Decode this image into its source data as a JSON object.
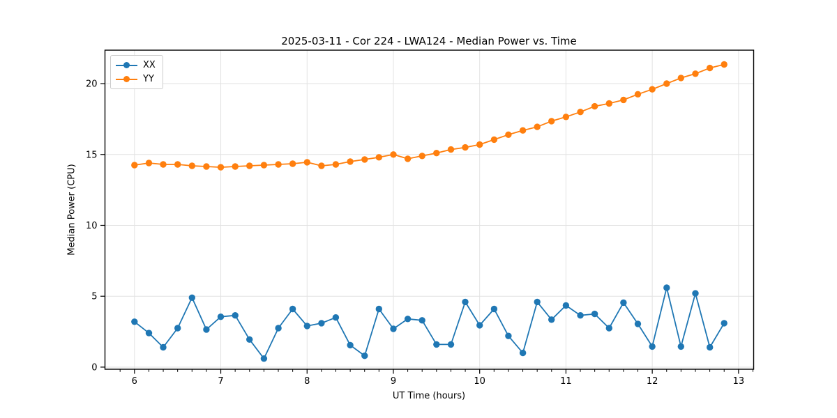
{
  "title": "2025-03-11 - Cor 224 - LWA124 - Median Power vs. Time",
  "axes": {
    "xlabel": "UT Time (hours)",
    "ylabel": "Median Power (CPU)"
  },
  "legend": {
    "entries": [
      "XX",
      "YY"
    ],
    "position": "upper left"
  },
  "chart_data": {
    "type": "line",
    "title": "2025-03-11 - Cor 224 - LWA124 - Median Power vs. Time",
    "xlabel": "UT Time (hours)",
    "ylabel": "Median Power (CPU)",
    "x": [
      6.0,
      6.167,
      6.333,
      6.5,
      6.667,
      6.833,
      7.0,
      7.167,
      7.333,
      7.5,
      7.667,
      7.833,
      8.0,
      8.167,
      8.333,
      8.5,
      8.667,
      8.833,
      9.0,
      9.167,
      9.333,
      9.5,
      9.667,
      9.833,
      10.0,
      10.167,
      10.333,
      10.5,
      10.667,
      10.833,
      11.0,
      11.167,
      11.333,
      11.5,
      11.667,
      11.833,
      12.0,
      12.167,
      12.333,
      12.5,
      12.667,
      12.833
    ],
    "series": [
      {
        "name": "XX",
        "color": "#1f77b4",
        "values": [
          3.2,
          2.4,
          1.4,
          2.75,
          4.9,
          2.65,
          3.55,
          3.65,
          1.95,
          0.6,
          2.75,
          4.1,
          2.9,
          3.1,
          3.5,
          1.55,
          0.8,
          4.1,
          2.7,
          3.4,
          3.3,
          1.6,
          1.6,
          4.6,
          2.95,
          4.1,
          2.2,
          1.0,
          4.6,
          3.35,
          4.35,
          3.65,
          3.75,
          2.75,
          4.55,
          3.05,
          1.45,
          5.6,
          1.45,
          5.2,
          1.4,
          3.1
        ]
      },
      {
        "name": "YY",
        "color": "#ff7f0e",
        "values": [
          14.25,
          14.4,
          14.3,
          14.3,
          14.2,
          14.15,
          14.1,
          14.15,
          14.2,
          14.25,
          14.3,
          14.35,
          14.45,
          14.2,
          14.3,
          14.5,
          14.65,
          14.8,
          15.0,
          14.7,
          14.9,
          15.1,
          15.35,
          15.5,
          15.7,
          16.05,
          16.4,
          16.7,
          16.95,
          17.35,
          17.65,
          18.0,
          18.4,
          18.6,
          18.85,
          19.25,
          19.6,
          20.0,
          20.4,
          20.7,
          21.1,
          21.35
        ]
      }
    ],
    "xlim": [
      5.658,
      13.175
    ],
    "ylim": [
      -0.15,
      22.36
    ],
    "xticks": [
      6,
      7,
      8,
      9,
      10,
      11,
      12,
      13
    ],
    "yticks": [
      0,
      5,
      10,
      15,
      20
    ],
    "x_minor_step": 0.1666667,
    "grid": true,
    "legend_position": "upper left",
    "marker": "o"
  },
  "colors": {
    "background": "#ffffff",
    "grid": "#e2e2e2",
    "spine": "#000000",
    "text": "#000000",
    "legend_border": "#cccccc"
  }
}
